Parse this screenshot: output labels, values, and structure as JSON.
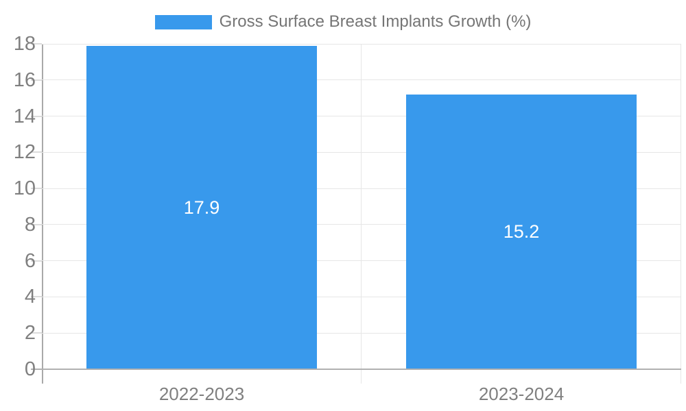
{
  "chart_data": {
    "type": "bar",
    "title": "Gross Surface Breast Implants Growth (%)",
    "categories": [
      "2022-2023",
      "2023-2024"
    ],
    "series": [
      {
        "name": "Gross Surface Breast Implants Growth (%)",
        "values": [
          17.9,
          15.2
        ]
      }
    ],
    "value_labels": [
      "17.9",
      "15.2"
    ],
    "xlabel": "",
    "ylabel": "",
    "ylim": [
      0,
      18
    ],
    "yticks": [
      0,
      2,
      4,
      6,
      8,
      10,
      12,
      14,
      16,
      18
    ],
    "grid": true,
    "legend_position": "top-center",
    "colors": {
      "bar": "#3899ec",
      "value_label": "#ffffff",
      "axis_text": "#7f7f7f",
      "legend_text": "#757575",
      "gridline": "#e6e6e6",
      "axis_line": "#a9a9a9",
      "baseline": "#b0b0b0",
      "background": "#ffffff"
    }
  },
  "legend": {
    "label": "Gross Surface Breast Implants Growth (%)"
  }
}
